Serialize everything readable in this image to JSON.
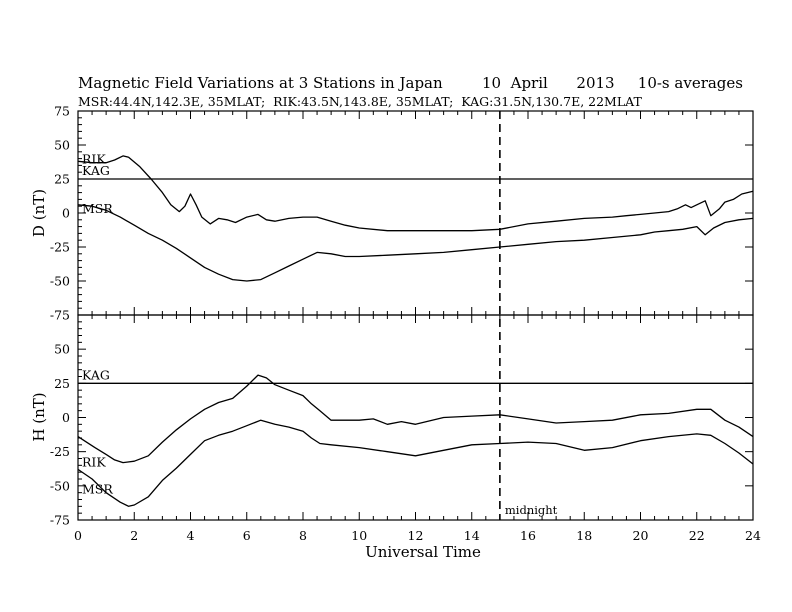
{
  "chart_data": {
    "type": "line",
    "title": "Magnetic Field Variations at 3 Stations in Japan",
    "date": "10  April      2013",
    "averaging": "10-s averages",
    "stations_line": "MSR:44.4N,142.3E, 35MLAT;  RIK:43.5N,143.8E, 35MLAT;  KAG:31.5N,130.7E, 22MLAT",
    "xlabel": "Universal Time",
    "xlim": [
      0,
      24
    ],
    "xticks": [
      "0",
      "2",
      "4",
      "6",
      "8",
      "10",
      "12",
      "14",
      "16",
      "18",
      "20",
      "22",
      "24"
    ],
    "annotation": {
      "text": "midnight",
      "x": 15
    },
    "panels": [
      {
        "ylabel": "D (nT)",
        "ylim": [
          -75,
          75
        ],
        "yticks": [
          "75",
          "50",
          "25",
          "0",
          "-25",
          "-50",
          "-75"
        ],
        "series": [
          {
            "name": "KAG",
            "x": [
              0,
              24
            ],
            "y": [
              25,
              25
            ]
          },
          {
            "name": "RIK",
            "x": [
              0,
              0.5,
              1,
              1.3,
              1.6,
              1.8,
              2.2,
              2.6,
              3,
              3.3,
              3.6,
              3.8,
              4,
              4.2,
              4.4,
              4.7,
              5,
              5.3,
              5.6,
              6,
              6.4,
              6.7,
              7,
              7.5,
              8,
              8.5,
              9,
              9.5,
              10,
              11,
              12,
              13,
              14,
              15,
              16,
              17,
              18,
              19,
              19.5,
              20,
              20.5,
              21,
              21.3,
              21.6,
              21.8,
              22,
              22.3,
              22.5,
              22.8,
              23,
              23.3,
              23.6,
              24
            ],
            "y": [
              38,
              37,
              37,
              39,
              42,
              41,
              34,
              25,
              15,
              6,
              1,
              5,
              14,
              6,
              -3,
              -8,
              -4,
              -5,
              -7,
              -3,
              -1,
              -5,
              -6,
              -4,
              -3,
              -3,
              -6,
              -9,
              -11,
              -13,
              -13,
              -13,
              -13,
              -12,
              -8,
              -6,
              -4,
              -3,
              -2,
              -1,
              0,
              1,
              3,
              6,
              4,
              6,
              9,
              -2,
              3,
              8,
              10,
              14,
              16
            ]
          },
          {
            "name": "MSR",
            "x": [
              0,
              0.5,
              1,
              1.5,
              2,
              2.5,
              3,
              3.5,
              4,
              4.5,
              5,
              5.5,
              6,
              6.5,
              7,
              7.5,
              8,
              8.5,
              9,
              9.5,
              10,
              11,
              12,
              13,
              14,
              15,
              16,
              17,
              18,
              19,
              20,
              20.5,
              21,
              21.5,
              22,
              22.3,
              22.6,
              23,
              23.5,
              24
            ],
            "y": [
              6,
              5,
              2,
              -3,
              -9,
              -15,
              -20,
              -26,
              -33,
              -40,
              -45,
              -49,
              -50,
              -49,
              -44,
              -39,
              -34,
              -29,
              -30,
              -32,
              -32,
              -31,
              -30,
              -29,
              -27,
              -25,
              -23,
              -21,
              -20,
              -18,
              -16,
              -14,
              -13,
              -12,
              -10,
              -16,
              -11,
              -7,
              -5,
              -4
            ]
          }
        ]
      },
      {
        "ylabel": "H (nT)",
        "ylim": [
          -75,
          75
        ],
        "yticks": [
          "75",
          "50",
          "25",
          "0",
          "-25",
          "-50",
          "-75"
        ],
        "series": [
          {
            "name": "KAG",
            "x": [
              0,
              24
            ],
            "y": [
              25,
              25
            ]
          },
          {
            "name": "RIK",
            "x": [
              0,
              0.3,
              0.6,
              1,
              1.3,
              1.6,
              2,
              2.5,
              3,
              3.5,
              4,
              4.5,
              5,
              5.5,
              6,
              6.4,
              6.7,
              7,
              7.5,
              8,
              8.3,
              8.6,
              9,
              9.5,
              10,
              10.5,
              11,
              11.5,
              12,
              13,
              14,
              15,
              16,
              17,
              18,
              19,
              20,
              21,
              22,
              22.5,
              23,
              23.5,
              24
            ],
            "y": [
              -14,
              -18,
              -22,
              -27,
              -31,
              -33,
              -32,
              -28,
              -18,
              -9,
              -1,
              6,
              11,
              14,
              23,
              31,
              29,
              24,
              20,
              16,
              10,
              5,
              -2,
              -2,
              -2,
              -1,
              -5,
              -3,
              -5,
              0,
              1,
              2,
              -1,
              -4,
              -3,
              -2,
              2,
              3,
              6,
              6,
              -2,
              -7,
              -14
            ]
          },
          {
            "name": "MSR",
            "x": [
              0,
              0.5,
              1,
              1.5,
              1.8,
              2,
              2.5,
              3,
              3.5,
              4,
              4.5,
              5,
              5.5,
              6,
              6.5,
              7,
              7.5,
              8,
              8.3,
              8.6,
              9,
              10,
              11,
              12,
              13,
              14,
              15,
              16,
              17,
              18,
              19,
              20,
              21,
              22,
              22.5,
              23,
              23.5,
              24
            ],
            "y": [
              -38,
              -45,
              -55,
              -62,
              -65,
              -64,
              -58,
              -46,
              -37,
              -27,
              -17,
              -13,
              -10,
              -6,
              -2,
              -5,
              -7,
              -10,
              -15,
              -19,
              -20,
              -22,
              -25,
              -28,
              -24,
              -20,
              -19,
              -18,
              -19,
              -24,
              -22,
              -17,
              -14,
              -12,
              -13,
              -19,
              -26,
              -34
            ]
          }
        ]
      }
    ]
  }
}
